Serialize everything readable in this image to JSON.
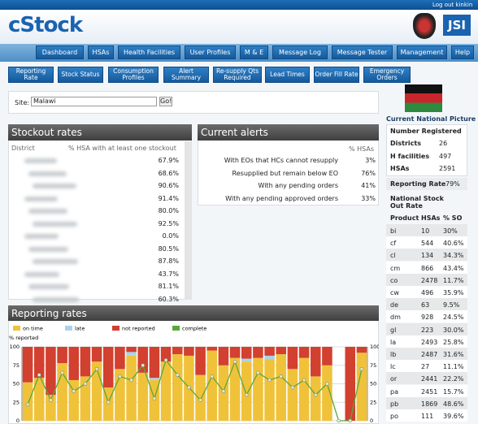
{
  "header": {
    "logout": "Log out kinkin",
    "logo": "cStock",
    "partner": "JSI"
  },
  "nav": [
    "Dashboard",
    "HSAs",
    "Health Facilities",
    "User Profiles",
    "M & E",
    "Message Log",
    "Message Tester",
    "Management",
    "Help"
  ],
  "subnav": [
    "Reporting Rate",
    "Stock Status",
    "Consumption Profiles",
    "Alert Summary",
    "Re-supply Qts Required",
    "Lead Times",
    "Order Fill Rate",
    "Emergency Orders"
  ],
  "site": {
    "label": "Site:",
    "value": "Malawi",
    "button": "Go!"
  },
  "stockout": {
    "title": "Stockout rates",
    "columns": [
      "District",
      "% HSA with at least one stockout"
    ],
    "rows": [
      "67.9%",
      "68.6%",
      "90.6%",
      "91.4%",
      "80.0%",
      "92.5%",
      "0.0%",
      "80.5%",
      "87.8%",
      "43.7%",
      "81.1%",
      "60.3%"
    ]
  },
  "alerts": {
    "title": "Current alerts",
    "column": "% HSAs",
    "rows": [
      [
        "With EOs that HCs cannot resupply",
        "3%"
      ],
      [
        "Resupplied but remain below EO",
        "76%"
      ],
      [
        "With any pending orders",
        "41%"
      ],
      [
        "With any pending approved orders",
        "33%"
      ]
    ]
  },
  "sidebar": {
    "title": "Current National Picture",
    "registered": "Number Registered",
    "counts": [
      [
        "Districts",
        26
      ],
      [
        "H facilities",
        497
      ],
      [
        "HSAs",
        2591
      ]
    ],
    "reporting": [
      "Reporting Rate",
      "79%"
    ],
    "stockout_title": "National Stock Out Rate",
    "columns": [
      "Product",
      "HSAs",
      "% SO"
    ],
    "rows": [
      [
        "bi",
        10,
        "30%"
      ],
      [
        "cf",
        544,
        "40.6%"
      ],
      [
        "cl",
        134,
        "34.3%"
      ],
      [
        "cm",
        866,
        "43.4%"
      ],
      [
        "co",
        2478,
        "11.7%"
      ],
      [
        "cw",
        496,
        "35.9%"
      ],
      [
        "de",
        63,
        "9.5%"
      ],
      [
        "dm",
        928,
        "24.5%"
      ],
      [
        "gl",
        223,
        "30.0%"
      ],
      [
        "la",
        2493,
        "25.8%"
      ],
      [
        "lb",
        2487,
        "31.6%"
      ],
      [
        "lc",
        27,
        "11.1%"
      ],
      [
        "or",
        2441,
        "22.2%"
      ],
      [
        "pa",
        2451,
        "15.7%"
      ],
      [
        "pb",
        1869,
        "48.6%"
      ],
      [
        "po",
        111,
        "39.6%"
      ]
    ]
  },
  "chart_data": {
    "type": "stacked_bar_line",
    "title": "Reporting rates",
    "y_label": "% reported",
    "categories": [
      null,
      null,
      null,
      null,
      null,
      null,
      null,
      null,
      null,
      null,
      null,
      null,
      null,
      null,
      null,
      null,
      null,
      null,
      null,
      null,
      null,
      null,
      null,
      null,
      null,
      null,
      null,
      null,
      null,
      null
    ],
    "series": [
      {
        "name": "on time",
        "color": "#f0c23a",
        "values": [
          52,
          58,
          35,
          78,
          55,
          60,
          80,
          45,
          70,
          88,
          65,
          55,
          80,
          90,
          88,
          62,
          95,
          75,
          85,
          80,
          85,
          83,
          90,
          70,
          85,
          60,
          75,
          0,
          0,
          92
        ]
      },
      {
        "name": "late",
        "color": "#a9d3ea",
        "values": [
          0,
          0,
          0,
          0,
          0,
          0,
          0,
          0,
          0,
          5,
          0,
          3,
          0,
          0,
          0,
          0,
          0,
          0,
          0,
          4,
          0,
          5,
          0,
          0,
          0,
          0,
          0,
          0,
          0,
          0
        ]
      },
      {
        "name": "not reported",
        "color": "#d2402f",
        "values": [
          48,
          42,
          65,
          22,
          45,
          40,
          20,
          55,
          30,
          7,
          35,
          42,
          20,
          10,
          12,
          38,
          5,
          25,
          15,
          16,
          15,
          12,
          10,
          30,
          15,
          40,
          25,
          0,
          100,
          8
        ]
      },
      {
        "name": "complete",
        "color": "#5aa83a",
        "type": "line",
        "axis": "y2",
        "values": [
          22,
          62,
          28,
          65,
          40,
          50,
          70,
          25,
          60,
          55,
          75,
          30,
          82,
          62,
          45,
          28,
          60,
          40,
          80,
          35,
          65,
          55,
          60,
          45,
          55,
          35,
          50,
          0,
          0,
          70
        ]
      }
    ],
    "ylim": [
      0,
      100
    ],
    "yticks": [
      0,
      25,
      50,
      75,
      100
    ],
    "y2lim": [
      0,
      100
    ],
    "y2ticks": [
      0,
      25,
      50,
      75,
      100
    ],
    "grid": true
  }
}
